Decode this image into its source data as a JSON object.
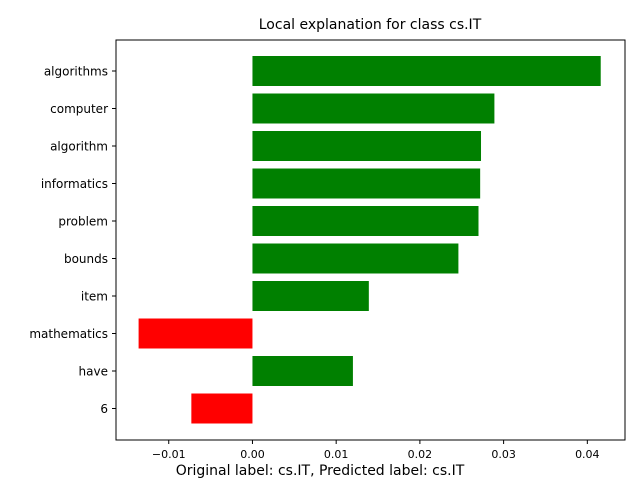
{
  "chart_data": {
    "type": "bar",
    "orientation": "horizontal",
    "title": "Local explanation for class cs.IT",
    "footer": "Original label: cs.IT, Predicted label: cs.IT",
    "categories": [
      "algorithms",
      "computer",
      "algorithm",
      "informatics",
      "problem",
      "bounds",
      "item",
      "mathematics",
      "have",
      "6"
    ],
    "values": [
      0.0416,
      0.0289,
      0.0273,
      0.0272,
      0.027,
      0.0246,
      0.0139,
      -0.0136,
      0.012,
      -0.0073
    ],
    "positive_color": "#008000",
    "negative_color": "#ff0000",
    "xlim": [
      -0.0163,
      0.0445
    ],
    "xticks": [
      -0.01,
      0.0,
      0.01,
      0.02,
      0.03,
      0.04
    ],
    "xtick_labels": [
      "−0.01",
      "0.00",
      "0.01",
      "0.02",
      "0.03",
      "0.04"
    ],
    "grid": false,
    "xlabel": "",
    "ylabel": ""
  }
}
